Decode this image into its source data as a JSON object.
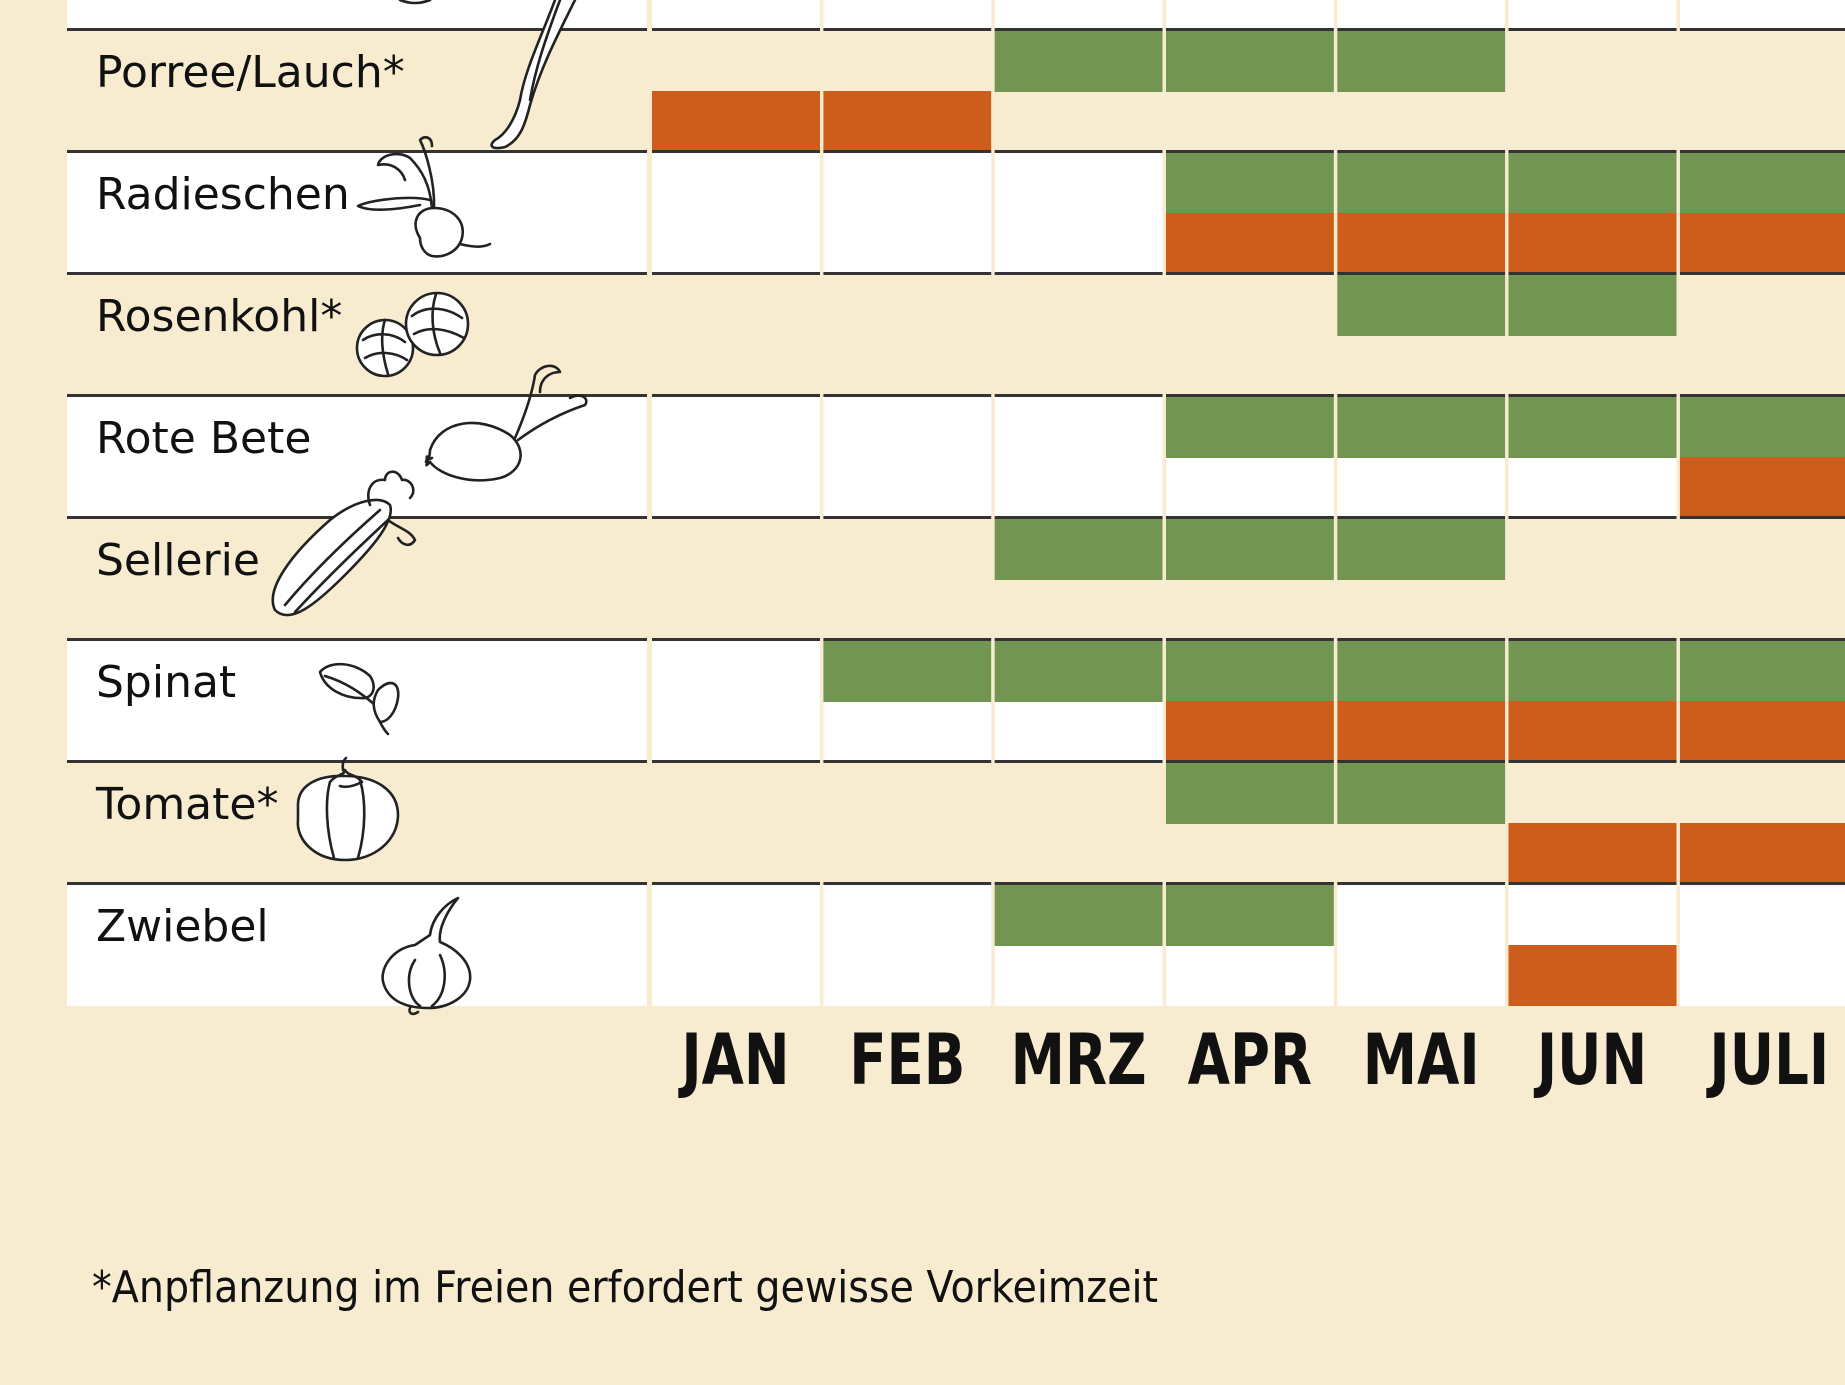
{
  "chart_data": {
    "type": "table",
    "months": [
      "JAN",
      "FEB",
      "MRZ",
      "APR",
      "MAI",
      "JUN",
      "JULI"
    ],
    "rows": [
      {
        "name": "Porree/Lauch*",
        "icon": "leek-icon",
        "green": [
          3,
          4,
          5
        ],
        "orange": [
          1,
          2
        ]
      },
      {
        "name": "Radieschen",
        "icon": "radish-icon",
        "green": [
          4,
          5,
          6,
          7
        ],
        "orange": [
          4,
          5,
          6,
          7
        ]
      },
      {
        "name": "Rosenkohl*",
        "icon": "brussels-sprouts-icon",
        "green": [
          5,
          6
        ],
        "orange": []
      },
      {
        "name": "Rote Bete",
        "icon": "beetroot-icon",
        "green": [
          4,
          5,
          6,
          7
        ],
        "orange": [
          7
        ]
      },
      {
        "name": "Sellerie",
        "icon": "celery-icon",
        "green": [
          3,
          4,
          5
        ],
        "orange": []
      },
      {
        "name": "Spinat",
        "icon": "spinach-icon",
        "green": [
          2,
          3,
          4,
          5,
          6,
          7
        ],
        "orange": [
          4,
          5,
          6,
          7
        ]
      },
      {
        "name": "Tomate*",
        "icon": "tomato-icon",
        "green": [
          4,
          5
        ],
        "orange": [
          6,
          7
        ]
      },
      {
        "name": "Zwiebel",
        "icon": "onion-icon",
        "green": [
          3,
          4
        ],
        "orange": [
          6
        ]
      }
    ],
    "colors": {
      "green": "#739552",
      "orange": "#cc5d1c",
      "background": "#f7ecd0",
      "alt_row": "#ffffff",
      "divider": "#333333"
    }
  },
  "footnote": "*Anpflanzung im Freien erfordert gewisse Vorkeimzeit"
}
